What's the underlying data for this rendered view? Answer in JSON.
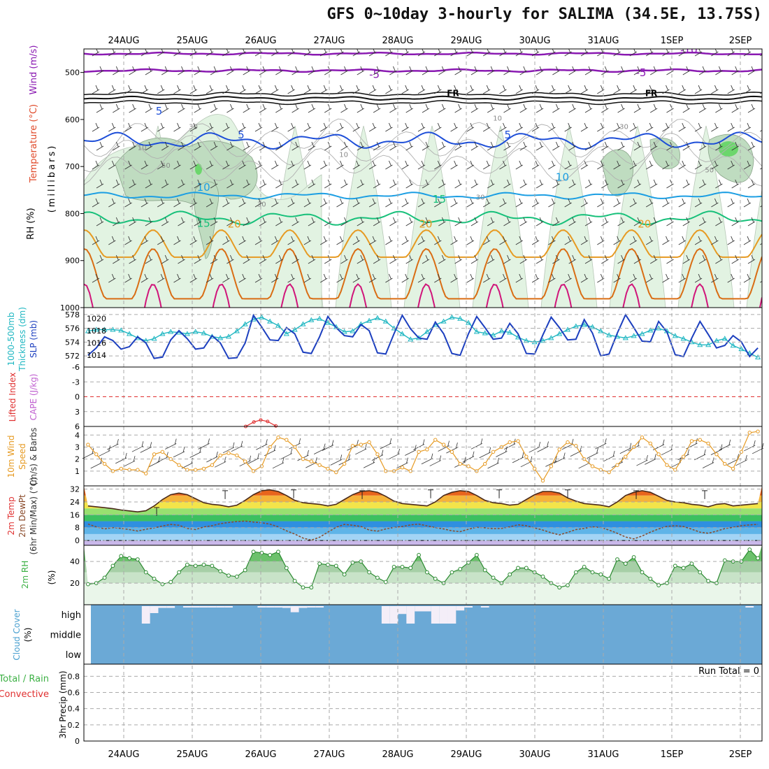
{
  "title": "GFS 0~10day 3-hourly for SALIMA (34.5E, 13.75S)",
  "colors": {
    "grid": "#aaaaaa",
    "axis": "#000000",
    "rh_light": "#e2f3e2",
    "rh_mid": "#bfdcc0",
    "rh_dark": "#9cb39f",
    "rh_high": "#6cd66c",
    "temp_violet": "#8a1ab2",
    "temp_black": "#111111",
    "temp_blue": "#1d4ed8",
    "temp_cyan": "#1b9ee3",
    "temp_green": "#17c07a",
    "temp_orange": "#e69a22",
    "temp_dorange": "#d96d14",
    "temp_magenta": "#d0157a",
    "slp": "#1c3fbf",
    "thickness": "#20b7c2",
    "lifted": "#e03030",
    "cape": "#c060d0",
    "wind10": "#e69a22",
    "barb": "#333333",
    "dewpt": "#8a4a2a",
    "tmax": "#333333",
    "rh2m": "#3cb044",
    "cloud": "#6ba9d6",
    "cloud_clear": "#f4eef8",
    "precip_total": "#3cb044",
    "precip_conv": "#e03030"
  },
  "chart_data": [
    {
      "id": "upper_air",
      "type": "contour",
      "x_dates": [
        "24AUG",
        "25AUG",
        "26AUG",
        "27AUG",
        "28AUG",
        "29AUG",
        "30AUG",
        "31AUG",
        "1SEP",
        "2SEP"
      ],
      "ylabel_parts": [
        "Wind (m/s)",
        "Temperature (°C)",
        "(millibars)",
        "RH (%)"
      ],
      "y_ticks": [
        500,
        600,
        700,
        800,
        900,
        1000
      ],
      "ylim": [
        450,
        1000
      ],
      "temperature_isotherms": [
        {
          "value": -10,
          "label": "-10",
          "color": "temp_violet",
          "level_mb": 460,
          "wave": 4,
          "lw": 2.5
        },
        {
          "value": -5,
          "label": "-5",
          "color": "temp_violet",
          "level_mb": 496,
          "wave": 5,
          "lw": 2.5
        },
        {
          "value": 0,
          "label": "FR",
          "color": "temp_black",
          "level_mb": 555,
          "wave": 7,
          "lw": 2,
          "double": true
        },
        {
          "value": 5,
          "label": "5",
          "color": "temp_blue",
          "level_mb": 645,
          "wave": 30,
          "lw": 2
        },
        {
          "value": 10,
          "label": "10",
          "color": "temp_cyan",
          "level_mb": 762,
          "wave": 12,
          "lw": 2
        },
        {
          "value": 15,
          "label": "15",
          "color": "temp_green",
          "level_mb": 810,
          "wave": 25,
          "lw": 2
        },
        {
          "value": 20,
          "label": "20",
          "color": "temp_orange",
          "level_mb": 835,
          "wave": 70,
          "lw": 2,
          "diurnal": true
        },
        {
          "value": 25,
          "label": "",
          "color": "temp_dorange",
          "level_mb": 875,
          "wave": 95,
          "lw": 2,
          "diurnal": true
        },
        {
          "value": 30,
          "label": "",
          "color": "temp_magenta",
          "level_mb": 950,
          "wave": 120,
          "lw": 2,
          "diurnal": true
        }
      ],
      "isotherm_labels": [
        {
          "text": "-10",
          "t": 8.85,
          "p": 460
        },
        {
          "text": "-5",
          "t": 4.25,
          "p": 512
        },
        {
          "text": "-5",
          "t": 8.15,
          "p": 508
        },
        {
          "text": "FR",
          "t": 5.4,
          "p": 550
        },
        {
          "text": "FR",
          "t": 8.3,
          "p": 550
        },
        {
          "text": "5",
          "t": 1.1,
          "p": 590
        },
        {
          "text": "5",
          "t": 2.3,
          "p": 640
        },
        {
          "text": "5",
          "t": 6.2,
          "p": 640
        },
        {
          "text": "10",
          "t": 1.75,
          "p": 752
        },
        {
          "text": "10",
          "t": 7.0,
          "p": 730
        },
        {
          "text": "15",
          "t": 1.75,
          "p": 828
        },
        {
          "text": "15",
          "t": 5.2,
          "p": 777
        },
        {
          "text": "20",
          "t": 2.2,
          "p": 830
        },
        {
          "text": "20",
          "t": 5.0,
          "p": 830
        },
        {
          "text": "20",
          "t": 8.2,
          "p": 830
        }
      ],
      "rh_labels": [
        {
          "text": "10",
          "t": 0.85,
          "p": 665
        },
        {
          "text": "30",
          "t": 1.6,
          "p": 620
        },
        {
          "text": "50",
          "t": 1.2,
          "p": 703
        },
        {
          "text": "30",
          "t": 2.6,
          "p": 785
        },
        {
          "text": "10",
          "t": 3.8,
          "p": 680
        },
        {
          "text": "10",
          "t": 6.05,
          "p": 602
        },
        {
          "text": "30",
          "t": 5.8,
          "p": 770
        },
        {
          "text": "30",
          "t": 7.9,
          "p": 620
        },
        {
          "text": "50",
          "t": 9.15,
          "p": 712
        }
      ]
    },
    {
      "id": "slp_thickness",
      "type": "line",
      "ylabel_left": "1000-500mb Thickness (dm)",
      "ylabel_right": "SLP (mb)",
      "thickness_ticks": [
        572,
        574,
        576,
        578
      ],
      "slp_ticks": [
        1014,
        1016,
        1018,
        1020
      ],
      "thickness_lim": [
        571.2,
        578.6
      ],
      "slp_lim": [
        1013,
        1021.3
      ],
      "slp_mb": [
        1014,
        1015.2,
        1017,
        1016.4,
        1015,
        1015.4,
        1017,
        1016,
        1013.5,
        1013.7,
        1016.5,
        1018,
        1016.7,
        1015,
        1015.2,
        1017.2,
        1016,
        1013.5,
        1013.6,
        1016,
        1020.5,
        1018.6,
        1016.5,
        1016.4,
        1018.5,
        1017.5,
        1014.5,
        1014.3,
        1017,
        1020.3,
        1018.5,
        1017.2,
        1017,
        1019,
        1018,
        1014.4,
        1014.2,
        1017.5,
        1020.5,
        1018.3,
        1016.8,
        1016.6,
        1019.4,
        1017.5,
        1014.3,
        1014,
        1017.5,
        1020.3,
        1018.5,
        1016.6,
        1016.8,
        1019.2,
        1017.5,
        1014.3,
        1014.2,
        1017.3,
        1020.2,
        1018.5,
        1016.5,
        1016.6,
        1019.8,
        1017.6,
        1013.9,
        1014.2,
        1017.6,
        1020.6,
        1018.5,
        1016.3,
        1016.2,
        1019.5,
        1017.8,
        1014.1,
        1013.8,
        1016.8,
        1019.5,
        1017.4,
        1015.2,
        1015.6,
        1017.2,
        1016.2,
        1013.8,
        1015.2
      ],
      "thickness_dm": [
        575.6,
        575.8,
        575.8,
        575.8,
        575.7,
        575.2,
        574.6,
        574.2,
        574.5,
        575.2,
        575.5,
        575.4,
        575.2,
        575.5,
        575.3,
        574.8,
        574.6,
        574.8,
        575.6,
        576.6,
        577.3,
        577.6,
        577.0,
        576.4,
        575.2,
        575.8,
        576.6,
        577.2,
        577.4,
        576.8,
        576.2,
        575.5,
        575.6,
        576.6,
        577.1,
        577.5,
        577.0,
        576.0,
        575.2,
        574.4,
        574.6,
        575.5,
        576.5,
        577.0,
        577.6,
        577.4,
        576.8,
        575.5,
        575.3,
        575.0,
        575.6,
        575.4,
        574.7,
        574.2,
        574.0,
        574.2,
        574.6,
        575.2,
        575.8,
        576.3,
        576.5,
        576.2,
        575.6,
        575.0,
        574.8,
        574.6,
        574.9,
        575.2,
        575.7,
        576.0,
        575.6,
        574.9,
        574.5,
        574.0,
        573.6,
        573.6,
        574.2,
        574.5,
        573.5,
        573.0,
        572.4,
        571.8
      ]
    },
    {
      "id": "stability",
      "type": "line",
      "ylabel_left": "Lifted Index",
      "ylabel_right": "CAPE (J/kg)",
      "li_ticks": [
        "-6",
        "-3",
        "0",
        "3",
        "6"
      ],
      "li_values": [
        -6,
        -3,
        0,
        3,
        6
      ],
      "lifted_index_points_days": [
        1.78,
        1.9,
        2.0,
        2.1,
        2.22
      ],
      "lifted_index_points_values": [
        6.0,
        5.1,
        4.7,
        5.0,
        5.9
      ]
    },
    {
      "id": "wind10m",
      "type": "line",
      "ylabel": "10m Wind Speed (m/s) & Barbs",
      "y_ticks": [
        1,
        2,
        3,
        4
      ],
      "ylim": [
        0,
        4.6
      ],
      "speed_ms": [
        3.2,
        2.4,
        1.6,
        1.0,
        1.2,
        1.1,
        1.1,
        0.8,
        2.4,
        2.6,
        2.0,
        1.5,
        1.1,
        1.1,
        1.2,
        1.5,
        2.3,
        2.5,
        2.3,
        1.8,
        1.0,
        1.4,
        3.0,
        3.8,
        3.6,
        3.0,
        2.0,
        1.8,
        1.5,
        1.2,
        0.9,
        1.6,
        3.1,
        3.2,
        3.4,
        2.4,
        1.0,
        1.0,
        1.3,
        1.0,
        2.6,
        2.8,
        3.6,
        3.2,
        2.6,
        1.6,
        1.4,
        1.0,
        1.6,
        2.6,
        3.0,
        3.4,
        3.5,
        2.2,
        1.2,
        0.2,
        1.4,
        2.8,
        3.4,
        3.1,
        2.0,
        1.4,
        1.1,
        0.9,
        1.5,
        2.2,
        3.0,
        3.8,
        3.3,
        2.4,
        1.5,
        1.1,
        2.2,
        3.5,
        3.6,
        3.3,
        2.4,
        1.6,
        1.2,
        2.6,
        4.2,
        4.3
      ]
    },
    {
      "id": "temp2m",
      "type": "area",
      "ylabel": "2m Temp 2m DewPt (6hr Min/Max) (°C)",
      "y_ticks": [
        0,
        8,
        16,
        24,
        32
      ],
      "ylim": [
        -3,
        34
      ],
      "temp_c": [
        21.5,
        21.0,
        20.4,
        19.8,
        19.0,
        18.4,
        17.8,
        18.5,
        21.5,
        25.5,
        28.5,
        29.5,
        28.5,
        26.0,
        23.5,
        22.5,
        22.0,
        21.0,
        22.0,
        25.0,
        28.5,
        31.0,
        31.5,
        30.5,
        28.0,
        25.0,
        23.5,
        23.0,
        22.5,
        21.5,
        22.5,
        25.5,
        28.5,
        30.5,
        31.0,
        30.0,
        27.5,
        24.5,
        23.0,
        22.5,
        22.0,
        21.5,
        24.0,
        28.0,
        30.0,
        31.0,
        30.5,
        28.0,
        25.0,
        23.5,
        23.0,
        22.0,
        22.5,
        25.5,
        28.5,
        30.5,
        30.5,
        29.5,
        26.5,
        24.5,
        23.0,
        22.5,
        22.0,
        21.0,
        24.0,
        28.0,
        30.0,
        31.0,
        30.0,
        27.5,
        25.0,
        24.0,
        23.5,
        22.5,
        22.0,
        21.0,
        22.5,
        23.0,
        21.5,
        22.0,
        22.5,
        23.0
      ],
      "dewpt_c": [
        10.2,
        8.5,
        7.2,
        8.0,
        7.5,
        6.8,
        5.9,
        7.0,
        7.8,
        9.0,
        10.0,
        9.5,
        7.5,
        6.8,
        8.4,
        9.2,
        10.5,
        11.2,
        11.8,
        12.1,
        11.5,
        11.0,
        10.2,
        8.5,
        6.0,
        4.0,
        1.5,
        0.2,
        2.0,
        5.2,
        8.2,
        10.0,
        9.5,
        8.7,
        6.5,
        5.8,
        7.2,
        8.1,
        8.7,
        9.7,
        10.2,
        9.1,
        8.0,
        7.2,
        6.0,
        5.5,
        7.0,
        8.2,
        7.9,
        7.3,
        7.5,
        8.5,
        9.8,
        9.2,
        7.8,
        6.5,
        4.8,
        3.5,
        5.0,
        6.8,
        7.5,
        8.5,
        8.1,
        6.5,
        4.5,
        2.2,
        1.0,
        2.8,
        5.2,
        7.2,
        8.8,
        9.2,
        8.7,
        7.0,
        5.2,
        4.5,
        5.8,
        7.4,
        8.2,
        9.2,
        9.7,
        10.0
      ],
      "max_bars_c": [
        20.5,
        31.0,
        31.5,
        31.0,
        31.5,
        31.5,
        31.5,
        31.0,
        31.0,
        31.5,
        30.0
      ]
    },
    {
      "id": "rh2m",
      "type": "area",
      "ylabel": "2m RH (%)",
      "y_ticks": [
        20,
        40
      ],
      "ylim": [
        0,
        55
      ],
      "rh_pct": [
        19,
        20,
        25,
        36,
        45,
        43,
        42,
        30,
        24,
        19,
        21,
        30,
        37,
        36,
        37,
        36,
        31,
        27,
        26,
        32,
        49,
        48,
        46,
        49,
        34,
        22,
        16,
        16,
        38,
        37,
        36,
        28,
        39,
        40,
        30,
        25,
        21,
        35,
        35,
        34,
        46,
        30,
        24,
        20,
        30,
        33,
        39,
        46,
        32,
        25,
        20,
        28,
        34,
        34,
        30,
        26,
        20,
        16,
        18,
        30,
        35,
        30,
        28,
        24,
        42,
        38,
        44,
        30,
        24,
        18,
        20,
        36,
        34,
        38,
        30,
        22,
        20,
        41,
        40,
        40,
        51,
        43
      ]
    },
    {
      "id": "cloud",
      "type": "heatmap",
      "ylabel": "Cloud Cover (%)",
      "layers": [
        "high",
        "middle",
        "low"
      ],
      "high_clear": [
        0,
        0,
        0,
        0,
        0,
        0,
        0,
        1.0,
        0.4,
        0.1,
        0.1,
        0,
        0.05,
        0.05,
        0.05,
        0.05,
        0.05,
        0.05,
        0,
        0,
        0,
        0.05,
        0.05,
        0.05,
        0.1,
        0.35,
        0.1,
        0.05,
        0.05,
        0,
        0,
        0,
        0,
        0,
        0,
        0,
        1.0,
        1.0,
        0.45,
        1.0,
        0.3,
        0.3,
        1.0,
        1.0,
        1.0,
        0.25,
        0.05,
        0,
        0.05,
        0,
        0,
        0,
        0,
        0,
        0,
        0,
        0,
        0,
        0,
        0,
        0,
        0,
        0,
        0,
        0,
        0,
        0,
        0,
        0,
        0,
        0,
        0,
        0,
        0,
        0,
        0,
        0,
        0,
        0,
        0,
        0.05,
        0
      ]
    },
    {
      "id": "precip",
      "type": "bar",
      "ylabel": "3hr Precip (mm)",
      "legend": [
        "Total / Rain",
        "Convective"
      ],
      "run_total_label": "Run Total = 0",
      "y_ticks": [
        "0",
        "0.2",
        "0.4",
        "0.6",
        "0.8"
      ],
      "ylim": [
        0,
        0.95
      ],
      "values": []
    }
  ],
  "labels": {
    "thick_a": "1000-500mb",
    "thick_b": "Thickness (dm)",
    "slp": "SLP (mb)",
    "li": "Lifted Index",
    "cape": "CAPE (J/kg)",
    "w1": "10m Wind",
    "w2": "Speed",
    "w3": "(m/s) & Barbs",
    "t1": "2m Temp",
    "t2": "2m DewPt",
    "t3": "(6hr Min/Max) (°C)",
    "rh_a": "2m RH",
    "rh_b": "(%)",
    "cc_a": "Cloud Cover",
    "cc_b": "(%)",
    "p_a": "Total / Rain",
    "p_b": "Convective",
    "p_c": "3hr Precip (mm)"
  }
}
